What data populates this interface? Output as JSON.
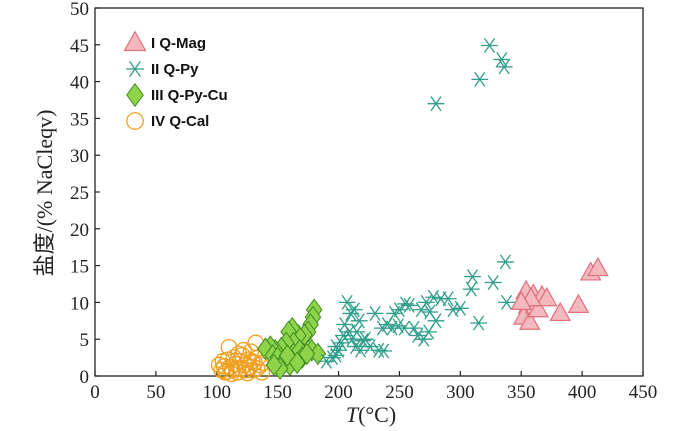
{
  "chart_data": {
    "type": "scatter",
    "title": "",
    "xlabel": "T(°C)",
    "xlabel_italic_part": "T",
    "xlabel_rest": "(°C)",
    "ylabel": "盐度/(% NaCleqv)",
    "xlim": [
      0,
      450
    ],
    "ylim": [
      0,
      50
    ],
    "xticks": [
      0,
      50,
      100,
      150,
      200,
      250,
      300,
      350,
      400,
      450
    ],
    "yticks": [
      0,
      5,
      10,
      15,
      20,
      25,
      30,
      35,
      40,
      45,
      50
    ],
    "grid": false,
    "legend_position": "top-left",
    "series": [
      {
        "name": "I Q-Mag",
        "marker": "triangle",
        "color": "#e0707a",
        "fill": "#f4b9bf",
        "points": [
          [
            354,
            11.5
          ],
          [
            356,
            9.5
          ],
          [
            352,
            8.0
          ],
          [
            357,
            7.3
          ],
          [
            360,
            11.0
          ],
          [
            362,
            9.5
          ],
          [
            364,
            9.0
          ],
          [
            367,
            10.8
          ],
          [
            371,
            10.5
          ],
          [
            382,
            8.5
          ],
          [
            397,
            9.6
          ],
          [
            407,
            14.0
          ],
          [
            413,
            14.6
          ],
          [
            358,
            10.5
          ],
          [
            350,
            10.0
          ]
        ]
      },
      {
        "name": "II Q-Py",
        "marker": "star",
        "color": "#2f9e8a",
        "fill": "none",
        "points": [
          [
            280,
            37.0
          ],
          [
            316,
            40.3
          ],
          [
            324,
            44.9
          ],
          [
            334,
            43.0
          ],
          [
            336,
            42.0
          ],
          [
            337,
            15.5
          ],
          [
            310,
            13.5
          ],
          [
            327,
            12.7
          ],
          [
            309,
            11.8
          ],
          [
            338,
            10.0
          ],
          [
            315,
            7.2
          ],
          [
            300,
            9.2
          ],
          [
            294,
            9.0
          ],
          [
            290,
            10.5
          ],
          [
            284,
            10.5
          ],
          [
            278,
            10.7
          ],
          [
            275,
            8.7
          ],
          [
            272,
            10.0
          ],
          [
            280,
            7.5
          ],
          [
            268,
            9.0
          ],
          [
            265,
            5.5
          ],
          [
            270,
            5.0
          ],
          [
            274,
            6.0
          ],
          [
            262,
            6.5
          ],
          [
            258,
            9.6
          ],
          [
            255,
            9.8
          ],
          [
            250,
            9.0
          ],
          [
            246,
            8.5
          ],
          [
            244,
            6.5
          ],
          [
            249,
            6.8
          ],
          [
            254,
            6.5
          ],
          [
            240,
            7.0
          ],
          [
            236,
            6.5
          ],
          [
            230,
            8.5
          ],
          [
            233,
            3.5
          ],
          [
            237,
            3.4
          ],
          [
            226,
            4.0
          ],
          [
            220,
            4.8
          ],
          [
            215,
            6.0
          ],
          [
            217,
            7.5
          ],
          [
            213,
            9.0
          ],
          [
            210,
            8.5
          ],
          [
            207,
            10.0
          ],
          [
            205,
            7.0
          ],
          [
            209,
            6.0
          ],
          [
            211,
            5.0
          ],
          [
            214,
            4.0
          ],
          [
            202,
            4.5
          ],
          [
            200,
            3.5
          ],
          [
            198,
            2.8
          ],
          [
            195,
            2.5
          ],
          [
            190,
            2.0
          ],
          [
            198,
            4.0
          ],
          [
            204,
            5.5
          ],
          [
            218,
            3.5
          ],
          [
            222,
            5.0
          ]
        ]
      },
      {
        "name": "III Q-Py-Cu",
        "marker": "diamond",
        "color": "#3f8c20",
        "fill": "#8ed44a",
        "points": [
          [
            180,
            9.0
          ],
          [
            179,
            8.0
          ],
          [
            177,
            7.0
          ],
          [
            175,
            6.0
          ],
          [
            172,
            5.6
          ],
          [
            167,
            5.5
          ],
          [
            162,
            6.5
          ],
          [
            159,
            6.0
          ],
          [
            163,
            4.5
          ],
          [
            157,
            4.5
          ],
          [
            153,
            3.8
          ],
          [
            148,
            3.5
          ],
          [
            144,
            4.0
          ],
          [
            140,
            3.7
          ],
          [
            146,
            2.8
          ],
          [
            150,
            2.5
          ],
          [
            155,
            2.0
          ],
          [
            160,
            1.5
          ],
          [
            163,
            3.0
          ],
          [
            168,
            3.5
          ],
          [
            170,
            2.5
          ],
          [
            178,
            3.5
          ],
          [
            183,
            3.0
          ],
          [
            174,
            3.0
          ],
          [
            152,
            1.0
          ],
          [
            147,
            1.5
          ],
          [
            158,
            2.8
          ],
          [
            166,
            1.8
          ]
        ]
      },
      {
        "name": "IV Q-Cal",
        "marker": "circle",
        "color": "#f0a020",
        "fill": "none",
        "points": [
          [
            102,
            1.5
          ],
          [
            104,
            0.8
          ],
          [
            105,
            2.0
          ],
          [
            106,
            1.3
          ],
          [
            108,
            0.6
          ],
          [
            109,
            2.2
          ],
          [
            110,
            3.9
          ],
          [
            111,
            1.2
          ],
          [
            113,
            0.8
          ],
          [
            114,
            2.5
          ],
          [
            115,
            1.6
          ],
          [
            117,
            0.5
          ],
          [
            118,
            3.0
          ],
          [
            119,
            2.0
          ],
          [
            120,
            1.0
          ],
          [
            121,
            2.8
          ],
          [
            122,
            3.5
          ],
          [
            123,
            1.5
          ],
          [
            124,
            0.8
          ],
          [
            126,
            2.2
          ],
          [
            127,
            1.2
          ],
          [
            128,
            3.3
          ],
          [
            129,
            2.0
          ],
          [
            130,
            0.8
          ],
          [
            131,
            1.8
          ],
          [
            132,
            4.5
          ],
          [
            133,
            1.0
          ],
          [
            134,
            2.5
          ],
          [
            136,
            1.5
          ],
          [
            138,
            1.8
          ],
          [
            125,
            0.4
          ],
          [
            116,
            1.0
          ],
          [
            107,
            0.5
          ],
          [
            112,
            0.3
          ],
          [
            137,
            0.5
          ]
        ]
      }
    ]
  }
}
